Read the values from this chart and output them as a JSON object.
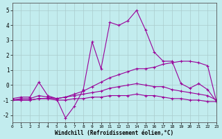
{
  "background_color": "#c2ecee",
  "grid_color": "#aacccc",
  "line_color": "#990099",
  "xlim": [
    0,
    23
  ],
  "ylim": [
    -2.5,
    5.5
  ],
  "yticks": [
    -2,
    -1,
    0,
    1,
    2,
    3,
    4,
    5
  ],
  "xticks": [
    0,
    1,
    2,
    3,
    4,
    5,
    6,
    7,
    8,
    9,
    10,
    11,
    12,
    13,
    14,
    15,
    16,
    17,
    18,
    19,
    20,
    21,
    22,
    23
  ],
  "xlabel": "Windchill (Refroidissement éolien,°C)",
  "series": [
    {
      "x": [
        0,
        1,
        2,
        3,
        4,
        5,
        6,
        7,
        8,
        9,
        10,
        11,
        12,
        13,
        14,
        15,
        16,
        17,
        18,
        19,
        20,
        21,
        22,
        23
      ],
      "y": [
        -0.9,
        -0.8,
        -0.8,
        0.2,
        -0.7,
        -0.9,
        -2.2,
        -1.4,
        -0.3,
        2.9,
        1.1,
        4.2,
        4.0,
        4.3,
        5.0,
        3.7,
        2.2,
        1.6,
        1.6,
        0.1,
        -0.2,
        0.1,
        -0.3,
        -1.1
      ]
    },
    {
      "x": [
        0,
        1,
        2,
        3,
        4,
        5,
        6,
        7,
        8,
        9,
        10,
        11,
        12,
        13,
        14,
        15,
        16,
        17,
        18,
        19,
        20,
        21,
        22,
        23
      ],
      "y": [
        -1.0,
        -0.9,
        -0.9,
        -0.7,
        -0.8,
        -0.9,
        -0.8,
        -0.6,
        -0.4,
        -0.1,
        0.2,
        0.5,
        0.7,
        0.9,
        1.1,
        1.1,
        1.2,
        1.4,
        1.5,
        1.6,
        1.6,
        1.5,
        1.3,
        -1.1
      ]
    },
    {
      "x": [
        0,
        1,
        2,
        3,
        4,
        5,
        6,
        7,
        8,
        9,
        10,
        11,
        12,
        13,
        14,
        15,
        16,
        17,
        18,
        19,
        20,
        21,
        22,
        23
      ],
      "y": [
        -1.0,
        -1.0,
        -1.0,
        -0.9,
        -0.9,
        -0.9,
        -0.8,
        -0.7,
        -0.6,
        -0.5,
        -0.4,
        -0.2,
        -0.1,
        0.0,
        0.1,
        0.0,
        -0.1,
        -0.1,
        -0.3,
        -0.4,
        -0.5,
        -0.6,
        -0.7,
        -1.0
      ]
    },
    {
      "x": [
        0,
        1,
        2,
        3,
        4,
        5,
        6,
        7,
        8,
        9,
        10,
        11,
        12,
        13,
        14,
        15,
        16,
        17,
        18,
        19,
        20,
        21,
        22,
        23
      ],
      "y": [
        -1.0,
        -1.0,
        -1.0,
        -0.9,
        -0.9,
        -1.0,
        -1.0,
        -0.9,
        -0.9,
        -0.8,
        -0.8,
        -0.7,
        -0.7,
        -0.7,
        -0.6,
        -0.7,
        -0.7,
        -0.8,
        -0.9,
        -0.9,
        -1.0,
        -1.0,
        -1.1,
        -1.1
      ]
    }
  ]
}
